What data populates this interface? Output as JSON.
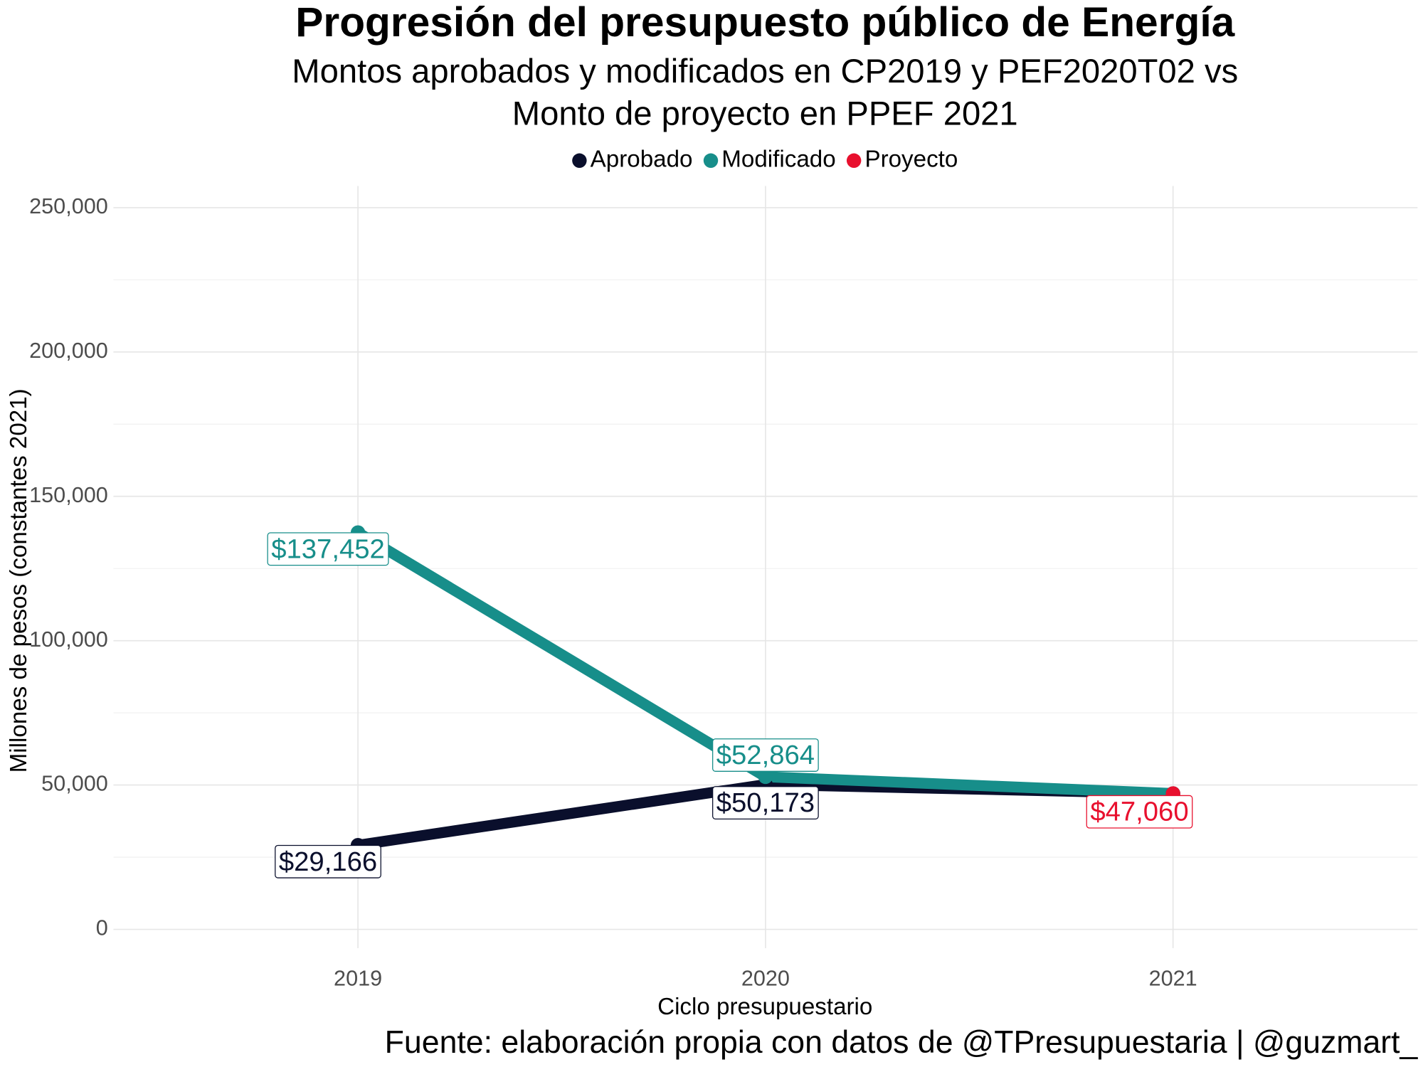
{
  "chart_data": {
    "type": "line",
    "title": "Progresión del presupuesto público de Energía",
    "subtitle": [
      "Montos aprobados y modificados en CP2019 y PEF2020T02 vs",
      "Monto de proyecto en PPEF 2021"
    ],
    "x_label": "Ciclo presupuestario",
    "y_label": "Millones de pesos (constantes 2021)",
    "caption": "Fuente: elaboración propia con datos de @TPresupuestaria | @guzmart_",
    "x": [
      2019,
      2020,
      2021
    ],
    "xlim": [
      2018.4,
      2021.6
    ],
    "xticks": [
      2019,
      2020,
      2021
    ],
    "ylim": [
      -6500,
      257500
    ],
    "yticks": [
      0,
      {
        "value": 50000,
        "label": "50,000"
      },
      {
        "value": 100000,
        "label": "100,000"
      },
      {
        "value": 150000,
        "label": "150,000"
      },
      {
        "value": 200000,
        "label": "200,000"
      },
      {
        "value": 250000,
        "label": "250,000"
      }
    ],
    "grid": true,
    "legend": "top",
    "series": [
      {
        "name": "Aprobado",
        "color": "#0a0f2c",
        "values": [
          29166,
          50173,
          47060
        ],
        "value_labels": [
          "$29,166",
          "$50,173",
          null
        ]
      },
      {
        "name": "Modificado",
        "color": "#178e8a",
        "values": [
          137452,
          52864,
          47060
        ],
        "value_labels": [
          "$137,452",
          "$52,864",
          null
        ]
      },
      {
        "name": "Proyecto",
        "color": "#e8102e",
        "values": [
          null,
          null,
          47060
        ],
        "value_labels": [
          null,
          null,
          "$47,060"
        ]
      }
    ]
  }
}
